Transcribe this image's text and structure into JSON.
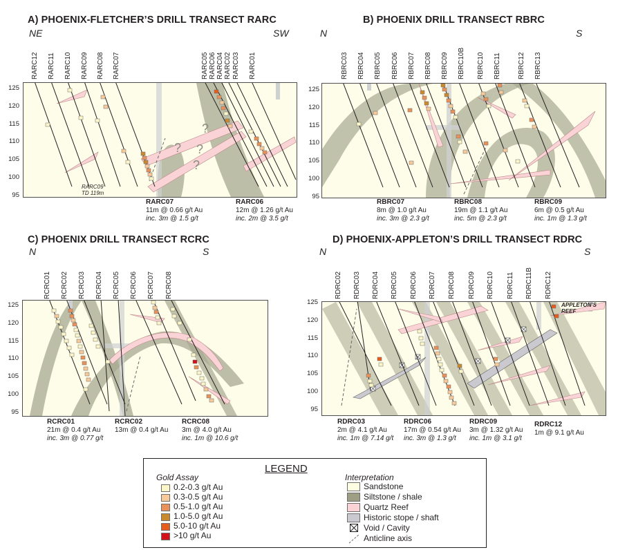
{
  "panels": {
    "a": {
      "title": "A) PHOENIX-FLETCHER’S DRILL TRANSECT RARC",
      "dir_left": "NE",
      "dir_right": "SW",
      "holes": [
        "RARC12",
        "RARC11",
        "RARC10",
        "RARC09",
        "RARC08",
        "RARC07",
        "RARC05",
        "RARC06",
        "RARC04",
        "RARC02",
        "RARC03",
        "RARC01"
      ],
      "td_label_1": "RARC09",
      "td_label_2": "TD 119m",
      "ann": [
        {
          "hole": "RARC07",
          "line1": "11m @ 0.66 g/t Au",
          "line2": "inc. 3m @ 1.5 g/t"
        },
        {
          "hole": "RARC06",
          "line1": "12m @ 1.26 g/t Au",
          "line2": "inc. 2m @ 3.5 g/t"
        }
      ]
    },
    "b": {
      "title": "B) PHOENIX DRILL TRANSECT RBRC",
      "dir_left": "N",
      "dir_right": "S",
      "holes": [
        "RBRC03",
        "RBRC04",
        "RBRC05",
        "RBRC06",
        "RBRC07",
        "RBRC08",
        "RBRC09",
        "RBRC10B",
        "RBRC10",
        "RBRC11",
        "RBRC12",
        "RBRC13"
      ],
      "ann": [
        {
          "hole": "RBRC07",
          "line1": "8m @ 1.0 g/t Au",
          "line2": "inc. 3m @ 2.3 g/t"
        },
        {
          "hole": "RBRC08",
          "line1": "19m @ 1.1 g/t Au",
          "line2": "inc. 5m @ 2.3 g/t"
        },
        {
          "hole": "RBRC09",
          "line1": "6m @ 0.5 g/t Au",
          "line2": "inc. 1m @ 1.3 g/t"
        }
      ]
    },
    "c": {
      "title": "C) PHOENIX DRILL TRANSECT RCRC",
      "dir_left": "N",
      "dir_right": "S",
      "holes": [
        "RCRC01",
        "RCRC02",
        "RCRC03",
        "RCRC04",
        "RCRC05",
        "RCRC06",
        "RCRC07",
        "RCRC08"
      ],
      "ann": [
        {
          "hole": "RCRC01",
          "line1": "21m @ 0.4 g/t Au",
          "line2": "inc. 3m @ 0.77 g/t"
        },
        {
          "hole": "RCRC02",
          "line1": "13m @ 0.4 g/t Au",
          "line2": ""
        },
        {
          "hole": "RCRC08",
          "line1": "3m @ 4.0 g/t Au",
          "line2": "inc. 1m @ 10.6 g/t"
        }
      ]
    },
    "d": {
      "title": "D) PHOENIX-APPLETON’S DRILL TRANSECT RDRC",
      "dir_left": "N",
      "dir_right": "S",
      "holes": [
        "RDRC02",
        "RDRC03",
        "RDRC04",
        "RDRC05",
        "RDRC06",
        "RDRC07",
        "RDRC08",
        "RDRC09",
        "RDRC10",
        "RDRC11",
        "RDRC11B",
        "RDRC12"
      ],
      "reef_label_1": "APPLETON’S",
      "reef_label_2": "REEF",
      "ann": [
        {
          "hole": "RDRC03",
          "line1": "2m @ 4.1 g/t Au",
          "line2": "inc. 1m @ 7.14 g/t"
        },
        {
          "hole": "RDRC06",
          "line1": "17m @ 0.54 g/t Au",
          "line2": "inc. 3m @ 1.3 g/t"
        },
        {
          "hole": "RDRC09",
          "line1": "3m @ 1.32 g/t Au",
          "line2": "inc. 1m @ 3.1 g/t"
        },
        {
          "hole": "RDRC12",
          "line1": "1m @ 9.1 g/t Au",
          "line2": ""
        }
      ]
    }
  },
  "y_ticks": [
    "125",
    "120",
    "115",
    "110",
    "105",
    "100",
    "95"
  ],
  "legend": {
    "title": "LEGEND",
    "assay_heading": "Gold Assay",
    "assay_items": [
      {
        "label": "0.2-0.3 g/t Au",
        "color": "#fdf6c8"
      },
      {
        "label": "0.3-0.5 g/t Au",
        "color": "#f8c99a"
      },
      {
        "label": "0.5-1.0 g/t Au",
        "color": "#e9915a"
      },
      {
        "label": "1.0-5.0 g/t Au",
        "color": "#c9892f"
      },
      {
        "label": "5.0-10 g/t Au",
        "color": "#e65c1e"
      },
      {
        "label": ">10 g/t Au",
        "color": "#d3121a"
      }
    ],
    "interp_heading": "Interpretation",
    "interp_items": [
      {
        "label": "Sandstone",
        "color": "#fdfde2"
      },
      {
        "label": "Siltstone / shale",
        "color": "#9d9e84"
      },
      {
        "label": "Quartz Reef",
        "color": "#f9d3d6"
      },
      {
        "label": "Historic stope / shaft",
        "color": "#c9c9cf"
      },
      {
        "label": "Void / Cavity",
        "color": "#ffffff"
      },
      {
        "label": "Anticline axis",
        "color": "#808080"
      }
    ]
  }
}
